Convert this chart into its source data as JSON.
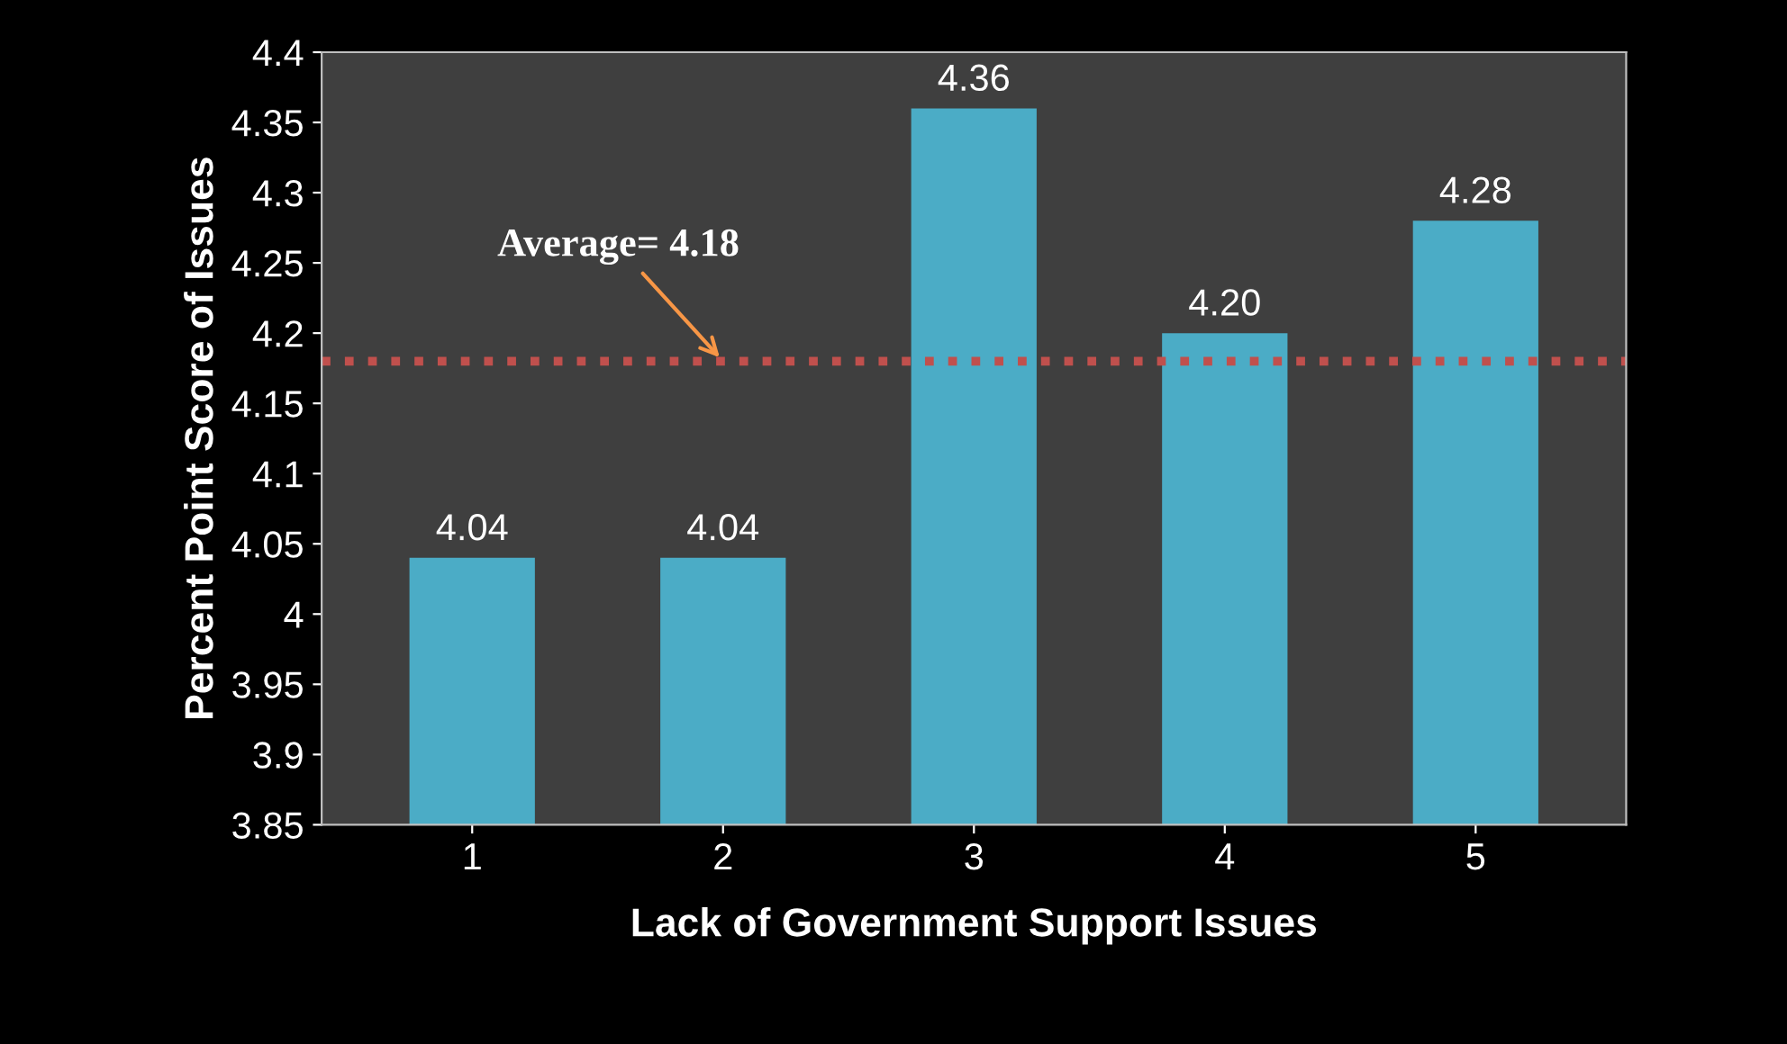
{
  "chart_data": {
    "type": "bar",
    "xlabel": "Lack of Government Support Issues",
    "ylabel": "Percent Point Score of Issues",
    "categories": [
      "1",
      "2",
      "3",
      "4",
      "5"
    ],
    "values": [
      4.04,
      4.04,
      4.36,
      4.2,
      4.28
    ],
    "value_labels": [
      "4.04",
      "4.04",
      "4.36",
      "4.20",
      "4.28"
    ],
    "color": "#4bacc6",
    "ylim": [
      3.85,
      4.4
    ],
    "yticks": [
      3.85,
      3.9,
      3.95,
      4,
      4.05,
      4.1,
      4.15,
      4.2,
      4.25,
      4.3,
      4.35,
      4.4
    ],
    "ref_lines": [
      {
        "axis": "y",
        "value": 4.18,
        "label": "Average= 4.18",
        "color": "#c0504d",
        "line_style": "dotted"
      }
    ],
    "grid": false,
    "legend": false
  }
}
